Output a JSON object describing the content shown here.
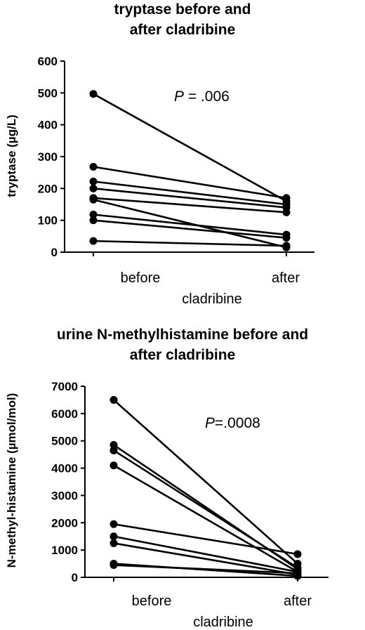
{
  "chart_data": [
    {
      "type": "line",
      "title_line1": "tryptase before and",
      "title_line2": "after cladribine",
      "ylabel": "tryptase (µg/L)",
      "xlabel": "cladribine",
      "categories": [
        "before",
        "after"
      ],
      "ylim": [
        0,
        600
      ],
      "yticks": [
        "0",
        "100",
        "200",
        "300",
        "400",
        "500",
        "600"
      ],
      "annotation_p": "P",
      "annotation_rest": " = .006",
      "series": [
        {
          "values": [
            497,
            160
          ]
        },
        {
          "values": [
            268,
            170
          ]
        },
        {
          "values": [
            222,
            150
          ]
        },
        {
          "values": [
            200,
            140
          ]
        },
        {
          "values": [
            170,
            125
          ]
        },
        {
          "values": [
            165,
            15
          ]
        },
        {
          "values": [
            118,
            55
          ]
        },
        {
          "values": [
            100,
            45
          ]
        },
        {
          "values": [
            35,
            20
          ]
        }
      ]
    },
    {
      "type": "line",
      "title_line1": "urine N-methylhistamine before and",
      "title_line2": "after cladribine",
      "ylabel": "N-methyl-histamine (µmol/mol)",
      "xlabel": "cladribine",
      "categories": [
        "before",
        "after"
      ],
      "ylim": [
        0,
        7000
      ],
      "yticks": [
        "0",
        "1000",
        "2000",
        "3000",
        "4000",
        "5000",
        "6000",
        "7000"
      ],
      "annotation_p": "P",
      "annotation_rest": "=.0008",
      "series": [
        {
          "values": [
            6500,
            500
          ]
        },
        {
          "values": [
            4850,
            300
          ]
        },
        {
          "values": [
            4650,
            350
          ]
        },
        {
          "values": [
            4100,
            200
          ]
        },
        {
          "values": [
            1950,
            850
          ]
        },
        {
          "values": [
            1500,
            200
          ]
        },
        {
          "values": [
            1250,
            100
          ]
        },
        {
          "values": [
            500,
            50
          ]
        },
        {
          "values": [
            450,
            150
          ]
        }
      ]
    }
  ]
}
